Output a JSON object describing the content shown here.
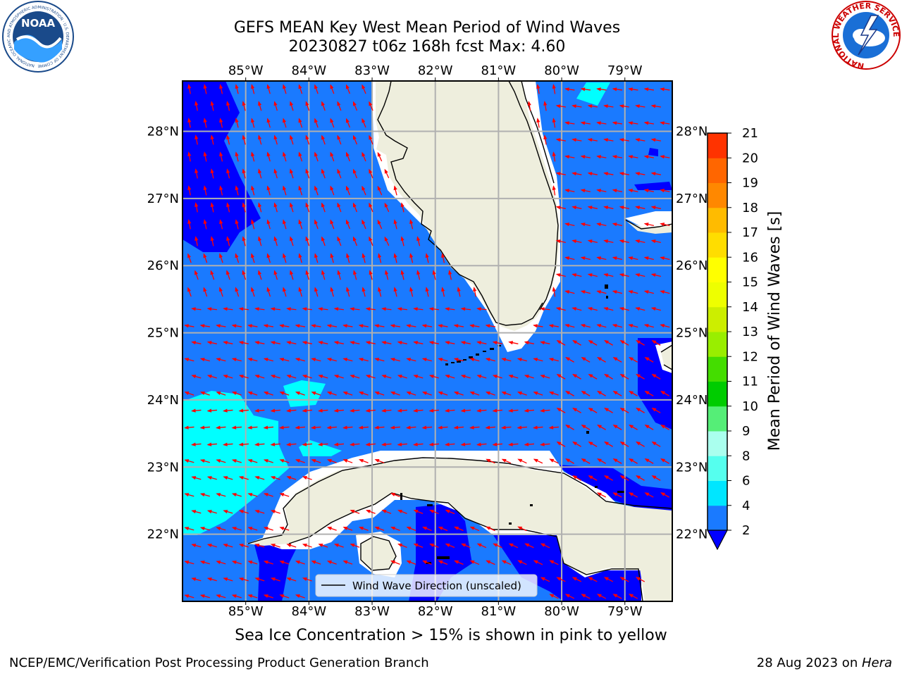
{
  "title": {
    "line1": "GEFS MEAN Key West Mean Period of Wind Waves",
    "line2": "20230827 t06z 168h fcst   Max: 4.60"
  },
  "map": {
    "lon_range": [
      -86.0,
      -78.25
    ],
    "lat_range": [
      21.0,
      28.75
    ],
    "lon_ticks": [
      "85°W",
      "84°W",
      "83°W",
      "82°W",
      "81°W",
      "80°W",
      "79°W"
    ],
    "lat_ticks": [
      "28°N",
      "27°N",
      "26°N",
      "25°N",
      "24°N",
      "23°N",
      "22°N"
    ],
    "grid": true,
    "legend": {
      "label": "Wind Wave Direction (unscaled)",
      "placement": "bottom-center"
    },
    "vector_color": "#ff0000",
    "land_color": "#eeeedd",
    "coast_color": "#000000"
  },
  "colorbar": {
    "label": "Mean Period of Wind Waves [s]",
    "ticks": [
      "2",
      "4",
      "6",
      "8",
      "9",
      "10",
      "11",
      "12",
      "13",
      "14",
      "15",
      "16",
      "17",
      "18",
      "19",
      "20",
      "21"
    ],
    "colors": [
      "#1a7aff",
      "#00e6ff",
      "#55ffee",
      "#aaffee",
      "#55ee77",
      "#00cc00",
      "#44dd00",
      "#99ee00",
      "#ccee00",
      "#eeff00",
      "#ffff00",
      "#ffdd00",
      "#ffbb00",
      "#ff8800",
      "#ff6600",
      "#ff3300",
      "#ff0000"
    ],
    "extend_color": "#0000ff"
  },
  "field_colors": {
    "band_2_4": "#1a7aff",
    "band_lt_2": "#0000ff",
    "band_4_6": "#00ffff"
  },
  "subcaption": "Sea Ice Concentration > 15% is shown in pink to yellow",
  "footer": {
    "left": "NCEP/EMC/Verification Post Processing Product Generation Branch",
    "right_date": "28 Aug 2023 on ",
    "right_host": "Hera"
  },
  "logos": {
    "noaa_text": "NOAA",
    "noaa_ring": "NATIONAL OCEANIC AND ATMOSPHERIC ADMINISTRATION · U.S. DEPARTMENT OF COMMERCE",
    "nws_ring": "NATIONAL WEATHER SERVICE"
  }
}
